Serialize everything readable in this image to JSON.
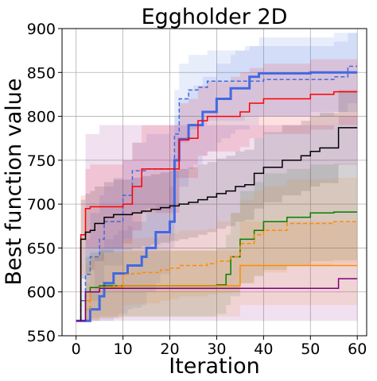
{
  "chart_data": {
    "type": "line",
    "title": "Eggholder 2D",
    "xlabel": "Iteration",
    "ylabel": "Best function value",
    "xlim": [
      -3,
      62
    ],
    "ylim": [
      550,
      900
    ],
    "xticks": [
      0,
      10,
      20,
      30,
      40,
      50,
      60
    ],
    "yticks": [
      550,
      600,
      650,
      700,
      750,
      800,
      850,
      900
    ],
    "grid": true,
    "legend": "none",
    "series": [
      {
        "color": "#4169e1",
        "style": "solid",
        "width": 3,
        "x": [
          0,
          2,
          3,
          4,
          5,
          6,
          8,
          9,
          11,
          12,
          14,
          15,
          16,
          17,
          18,
          20,
          21,
          22,
          24,
          25,
          27,
          28,
          30,
          31,
          33,
          34,
          36,
          37,
          39,
          40,
          45,
          50,
          55,
          60
        ],
        "y": [
          567,
          567,
          580,
          580,
          595,
          610,
          621,
          621,
          630,
          630,
          640,
          650,
          650,
          668,
          668,
          680,
          750,
          774,
          790,
          790,
          805,
          805,
          820,
          820,
          832,
          832,
          832,
          845,
          849,
          849,
          849,
          850,
          850,
          850
        ],
        "band_upper": [
          567,
          580,
          600,
          640,
          650,
          660,
          665,
          670,
          675,
          680,
          680,
          690,
          690,
          700,
          700,
          720,
          800,
          820,
          830,
          835,
          845,
          845,
          860,
          860,
          870,
          875,
          875,
          880,
          890,
          890,
          890,
          890,
          895,
          895
        ],
        "band_lower": [
          567,
          567,
          567,
          567,
          567,
          567,
          570,
          575,
          580,
          582,
          585,
          600,
          600,
          610,
          620,
          650,
          700,
          720,
          740,
          745,
          755,
          760,
          770,
          775,
          780,
          785,
          785,
          790,
          800,
          800,
          800,
          805,
          805,
          805
        ]
      },
      {
        "color": "#4169e1",
        "style": "dashed",
        "width": 1.5,
        "x": [
          0,
          1,
          2,
          3,
          5,
          6,
          8,
          10,
          12,
          13,
          15,
          18,
          20,
          21,
          22,
          24,
          26,
          28,
          30,
          34,
          36,
          40,
          45,
          50,
          55,
          58,
          60
        ],
        "y": [
          567,
          590,
          620,
          640,
          660,
          680,
          680,
          710,
          738,
          738,
          740,
          740,
          740,
          780,
          820,
          830,
          833,
          840,
          840,
          840,
          840,
          842,
          842,
          842,
          845,
          857,
          857
        ],
        "band_upper": [
          567,
          620,
          660,
          690,
          710,
          720,
          730,
          750,
          770,
          770,
          780,
          780,
          790,
          830,
          860,
          870,
          870,
          875,
          875,
          875,
          880,
          880,
          880,
          880,
          885,
          895,
          895
        ],
        "band_lower": [
          567,
          567,
          580,
          590,
          610,
          630,
          630,
          660,
          690,
          690,
          695,
          695,
          695,
          730,
          770,
          785,
          790,
          795,
          795,
          795,
          800,
          800,
          800,
          800,
          805,
          815,
          815
        ]
      },
      {
        "color": "#ff0000",
        "style": "solid",
        "width": 1.5,
        "x": [
          0,
          1,
          2,
          3,
          5,
          8,
          10,
          12,
          14,
          16,
          18,
          20,
          22,
          24,
          26,
          28,
          30,
          33,
          35,
          37,
          40,
          45,
          50,
          55,
          60
        ],
        "y": [
          567,
          665,
          695,
          697,
          697,
          697,
          700,
          720,
          740,
          740,
          740,
          740,
          773,
          775,
          795,
          800,
          800,
          800,
          805,
          815,
          820,
          820,
          825,
          828,
          828
        ],
        "band_upper": [
          567,
          710,
          740,
          745,
          745,
          745,
          750,
          770,
          790,
          790,
          790,
          790,
          815,
          820,
          835,
          840,
          840,
          845,
          850,
          855,
          860,
          860,
          865,
          865,
          865
        ],
        "band_lower": [
          567,
          620,
          650,
          650,
          650,
          650,
          655,
          670,
          690,
          690,
          690,
          690,
          730,
          730,
          755,
          760,
          760,
          760,
          765,
          775,
          780,
          780,
          785,
          790,
          790
        ]
      },
      {
        "color": "#000000",
        "style": "solid",
        "width": 1.5,
        "x": [
          0,
          1,
          2,
          3,
          4,
          6,
          8,
          10,
          12,
          14,
          16,
          18,
          20,
          22,
          24,
          26,
          28,
          30,
          32,
          34,
          36,
          38,
          40,
          44,
          48,
          50,
          52,
          55,
          56,
          58,
          60
        ],
        "y": [
          567,
          660,
          668,
          670,
          678,
          685,
          688,
          688,
          690,
          692,
          694,
          696,
          698,
          700,
          702,
          705,
          708,
          712,
          715,
          720,
          722,
          735,
          742,
          750,
          755,
          760,
          764,
          764,
          787,
          787,
          787
        ],
        "band_upper": [
          567,
          705,
          712,
          715,
          720,
          725,
          728,
          728,
          730,
          732,
          734,
          736,
          738,
          740,
          742,
          745,
          748,
          752,
          755,
          760,
          762,
          775,
          782,
          790,
          795,
          800,
          804,
          804,
          830,
          830,
          830
        ],
        "band_lower": [
          567,
          615,
          620,
          625,
          635,
          645,
          648,
          648,
          650,
          652,
          654,
          656,
          658,
          660,
          662,
          665,
          668,
          672,
          675,
          680,
          682,
          695,
          702,
          710,
          715,
          720,
          724,
          724,
          745,
          745,
          745
        ]
      },
      {
        "color": "#008000",
        "style": "solid",
        "width": 1.5,
        "x": [
          0,
          2,
          3,
          5,
          10,
          15,
          20,
          25,
          30,
          32,
          33,
          35,
          38,
          40,
          45,
          50,
          55,
          60
        ],
        "y": [
          567,
          600,
          605,
          607,
          607,
          607,
          607,
          607,
          608,
          620,
          640,
          660,
          670,
          680,
          685,
          690,
          691,
          691
        ],
        "band_upper": [
          567,
          640,
          645,
          647,
          647,
          647,
          647,
          647,
          650,
          665,
          690,
          715,
          725,
          735,
          740,
          745,
          746,
          746
        ],
        "band_lower": [
          567,
          567,
          570,
          572,
          572,
          572,
          572,
          572,
          575,
          585,
          595,
          610,
          618,
          625,
          630,
          635,
          636,
          636
        ]
      },
      {
        "color": "#ff8c00",
        "style": "dashed",
        "width": 1.5,
        "x": [
          0,
          1,
          2,
          3,
          5,
          8,
          10,
          12,
          14,
          18,
          20,
          22,
          24,
          26,
          28,
          30,
          33,
          35,
          38,
          40,
          45,
          50,
          55,
          60
        ],
        "y": [
          567,
          567,
          580,
          600,
          605,
          607,
          620,
          621,
          622,
          625,
          627,
          630,
          630,
          630,
          632,
          635,
          640,
          655,
          665,
          670,
          678,
          678,
          680,
          680
        ],
        "band_upper": [
          567,
          567,
          610,
          640,
          645,
          647,
          660,
          661,
          662,
          665,
          667,
          670,
          670,
          670,
          672,
          680,
          690,
          705,
          715,
          720,
          728,
          728,
          730,
          730
        ],
        "band_lower": [
          567,
          567,
          567,
          567,
          570,
          572,
          585,
          586,
          587,
          590,
          592,
          595,
          595,
          595,
          597,
          598,
          600,
          610,
          618,
          622,
          630,
          630,
          632,
          632
        ]
      },
      {
        "color": "#ff8c00",
        "style": "solid",
        "width": 1.5,
        "x": [
          0,
          2,
          3,
          5,
          10,
          15,
          20,
          25,
          30,
          34,
          35,
          40,
          45,
          50,
          55,
          60
        ],
        "y": [
          567,
          590,
          600,
          605,
          607,
          607,
          607,
          607,
          607,
          607,
          630,
          630,
          630,
          630,
          630,
          630
        ],
        "band_upper": [
          567,
          630,
          640,
          645,
          647,
          647,
          647,
          647,
          647,
          647,
          680,
          680,
          680,
          680,
          680,
          680
        ],
        "band_lower": [
          567,
          567,
          567,
          570,
          572,
          572,
          572,
          572,
          572,
          572,
          585,
          585,
          585,
          585,
          585,
          585
        ]
      },
      {
        "color": "#800080",
        "style": "solid",
        "width": 1.5,
        "x": [
          0,
          2,
          5,
          10,
          15,
          20,
          25,
          30,
          35,
          40,
          45,
          50,
          55,
          56,
          60
        ],
        "y": [
          567,
          600,
          604,
          604,
          604,
          604,
          604,
          604,
          604,
          604,
          604,
          604,
          604,
          615,
          615
        ],
        "band_upper": [
          567,
          780,
          790,
          790,
          790,
          790,
          790,
          790,
          790,
          790,
          790,
          790,
          790,
          800,
          800
        ],
        "band_lower": [
          567,
          567,
          567,
          567,
          567,
          567,
          567,
          567,
          567,
          567,
          567,
          567,
          567,
          567,
          567
        ]
      }
    ]
  }
}
